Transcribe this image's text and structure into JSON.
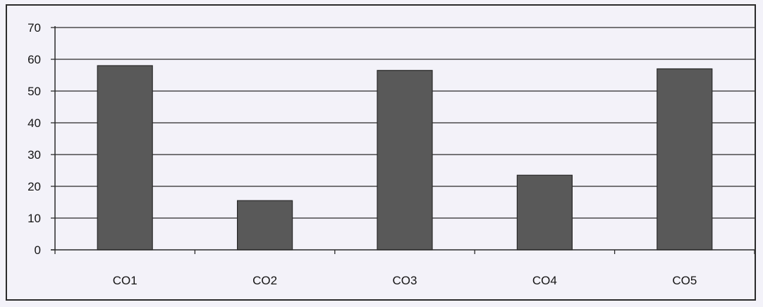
{
  "chart_data": {
    "type": "bar",
    "title": "",
    "xlabel": "",
    "ylabel": "",
    "categories": [
      "CO1",
      "CO2",
      "CO3",
      "CO4",
      "CO5"
    ],
    "values": [
      58,
      15.5,
      56.5,
      23.5,
      57
    ],
    "ylim": [
      0,
      70
    ],
    "yticks": [
      "0",
      "10",
      "20",
      "30",
      "40",
      "50",
      "60",
      "70"
    ],
    "grid": true,
    "legend": "none",
    "colors": {
      "bar": "#595959",
      "bar_edge": "#2a2a2a",
      "grid": "#2a2a2a",
      "background": "#f3f2f9"
    }
  }
}
